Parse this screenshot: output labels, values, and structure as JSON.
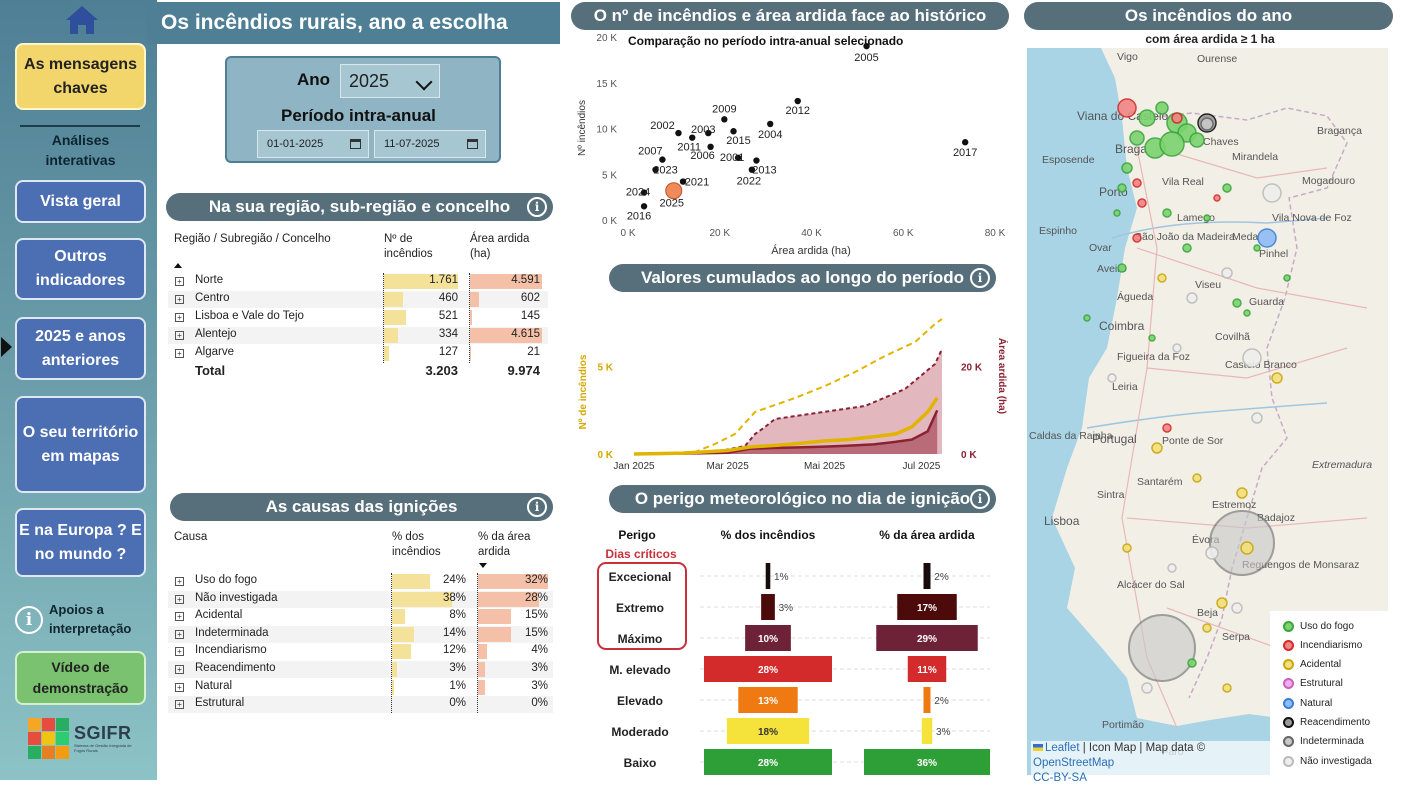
{
  "title": "Os incêndios rurais, ano a escolha",
  "sidebar": {
    "key_messages": "As mensagens chaves",
    "interactive_label": "Análises interativas",
    "items": [
      "Vista geral",
      "Outros indicadores",
      "2025 e anos anteriores",
      "O seu território em mapas",
      "E na Europa ? E no mundo ?"
    ],
    "help": "Apoios a interpretação",
    "video": "Vídeo de demonstração",
    "logo_name": "SGIFR",
    "logo_sub": "Sistema de Gestão Integrada de Fogos Rurais"
  },
  "year_panel": {
    "year_label": "Ano",
    "year_value": "2025",
    "period_label": "Período intra-anual",
    "date_start": "01-01-2025",
    "date_end": "11-07-2025"
  },
  "region_table": {
    "header": "Na sua região, sub-região e concelho",
    "col_region": "Região / Subregião / Concelho",
    "col_count": "Nº de incêndios",
    "col_area": "Área ardida (ha)",
    "rows": [
      {
        "name": "Norte",
        "count": "1.761",
        "area": "4.591",
        "count_v": 1761,
        "area_v": 4591
      },
      {
        "name": "Centro",
        "count": "460",
        "area": "602",
        "count_v": 460,
        "area_v": 602
      },
      {
        "name": "Lisboa e Vale do Tejo",
        "count": "521",
        "area": "145",
        "count_v": 521,
        "area_v": 145
      },
      {
        "name": "Alentejo",
        "count": "334",
        "area": "4.615",
        "count_v": 334,
        "area_v": 4615
      },
      {
        "name": "Algarve",
        "count": "127",
        "area": "21",
        "count_v": 127,
        "area_v": 21
      }
    ],
    "total_label": "Total",
    "total_count": "3.203",
    "total_area": "9.974"
  },
  "causes_table": {
    "header": "As causas das ignições",
    "col_cause": "Causa",
    "col_pct_fires": "% dos incêndios",
    "col_pct_area": "% da área ardida",
    "rows": [
      {
        "name": "Uso do fogo",
        "pf": "24%",
        "pa": "32%",
        "pf_v": 24,
        "pa_v": 32
      },
      {
        "name": "Não investigada",
        "pf": "38%",
        "pa": "28%",
        "pf_v": 38,
        "pa_v": 28
      },
      {
        "name": "Acidental",
        "pf": "8%",
        "pa": "15%",
        "pf_v": 8,
        "pa_v": 15
      },
      {
        "name": "Indeterminada",
        "pf": "14%",
        "pa": "15%",
        "pf_v": 14,
        "pa_v": 15
      },
      {
        "name": "Incendiarismo",
        "pf": "12%",
        "pa": "4%",
        "pf_v": 12,
        "pa_v": 4
      },
      {
        "name": "Reacendimento",
        "pf": "3%",
        "pa": "3%",
        "pf_v": 3,
        "pa_v": 3
      },
      {
        "name": "Natural",
        "pf": "1%",
        "pa": "3%",
        "pf_v": 1,
        "pa_v": 3
      },
      {
        "name": "Estrutural",
        "pf": "0%",
        "pa": "0%",
        "pf_v": 0,
        "pa_v": 0
      }
    ]
  },
  "scatter": {
    "header": "O nº de incêndios e área ardida face ao histórico",
    "subtitle": "Comparação no período intra-anual selecionado",
    "xlabel": "Área ardida (ha)",
    "ylabel": "Nº incêndios",
    "xticks": [
      "0 K",
      "20 K",
      "40 K",
      "60 K",
      "80 K"
    ],
    "yticks": [
      "0 K",
      "5 K",
      "10 K",
      "15 K",
      "20 K"
    ]
  },
  "cumulative": {
    "header": "Valores cumulados ao longo do período",
    "ylabel_left": "Nº de incêndios",
    "ylabel_right": "Área ardida (ha)",
    "xticks": [
      "Jan 2025",
      "Mar 2025",
      "Mai 2025",
      "Jul 2025"
    ],
    "yticks_left": [
      "0 K",
      "5 K"
    ],
    "yticks_right": [
      "0 K",
      "20 K"
    ]
  },
  "danger": {
    "header": "O perigo meteorológico no dia de ignição",
    "col_level": "Perigo",
    "col_fires": "% dos incêndios",
    "col_area": "% da área ardida",
    "critical_label": "Dias críticos",
    "levels": [
      {
        "name": "Excecional",
        "fires": 1,
        "area": 2,
        "fires_label": "1%",
        "area_label": "2%",
        "color": "#1a0a0a"
      },
      {
        "name": "Extremo",
        "fires": 3,
        "area": 17,
        "fires_label": "3%",
        "area_label": "17%",
        "color": "#4d0a0a"
      },
      {
        "name": "Máximo",
        "fires": 10,
        "area": 29,
        "fires_label": "10%",
        "area_label": "29%",
        "color": "#6e2238"
      },
      {
        "name": "M. elevado",
        "fires": 28,
        "area": 11,
        "fires_label": "28%",
        "area_label": "11%",
        "color": "#d32b2b"
      },
      {
        "name": "Elevado",
        "fires": 13,
        "area": 2,
        "fires_label": "13%",
        "area_label": "2%",
        "color": "#ef7a12"
      },
      {
        "name": "Moderado",
        "fires": 18,
        "area": 3,
        "fires_label": "18%",
        "area_label": "3%",
        "color": "#f5e23a"
      },
      {
        "name": "Baixo",
        "fires": 28,
        "area": 36,
        "fires_label": "28%",
        "area_label": "36%",
        "color": "#2e9e36"
      }
    ]
  },
  "map": {
    "header": "Os incêndios do ano",
    "subtitle": "com área ardida ≥ 1 ha",
    "place_labels": [
      "Vigo",
      "Ourense",
      "Viana do Castelo",
      "Braga",
      "Chaves",
      "Bragança",
      "Esposende",
      "Mirandela",
      "Vila Real",
      "Mogadouro",
      "Porto",
      "Lamego",
      "Vila Nova de Foz",
      "Espinho",
      "São João da Madeira",
      "Meda",
      "Ovar",
      "Pinhel",
      "Aveiro",
      "Viseu",
      "Águeda",
      "Guarda",
      "Coimbra",
      "Covilhã",
      "Figueira da Foz",
      "Castelo Branco",
      "Leiria",
      "Portugal",
      "Caldas da Rainha",
      "Ponte de Sor",
      "Santarém",
      "Extremadura",
      "Sintra",
      "Estremoz",
      "Lisboa",
      "Évora",
      "Badajoz",
      "Reguengos de Monsaraz",
      "Alcácer do Sal",
      "Beja",
      "Serpa",
      "Portimão",
      "Faro"
    ],
    "legend": [
      {
        "label": "Uso do fogo",
        "fill": "#7cd36f",
        "stroke": "#3aa63a"
      },
      {
        "label": "Incendiarismo",
        "fill": "#f08585",
        "stroke": "#d32b2b"
      },
      {
        "label": "Acidental",
        "fill": "#f3df7a",
        "stroke": "#c9a70f"
      },
      {
        "label": "Estrutural",
        "fill": "#f2aee8",
        "stroke": "#c662c0"
      },
      {
        "label": "Natural",
        "fill": "#8fbcf5",
        "stroke": "#3a7fd8"
      },
      {
        "label": "Reacendimento",
        "fill": "#9a9a9a",
        "stroke": "#111111"
      },
      {
        "label": "Indeterminada",
        "fill": "#c8c8c8",
        "stroke": "#666666"
      },
      {
        "label": "Não investigada",
        "fill": "#eeeeee",
        "stroke": "#bbbbbb"
      }
    ],
    "attribution_leaflet": "Leaflet",
    "attribution_rest": "| Icon Map | Map data ©",
    "attribution_osm": "OpenStreetMap",
    "attribution_license": "CC-BY-SA"
  },
  "chart_data": [
    {
      "type": "scatter",
      "title": "Comparação no período intra-anual selecionado",
      "xlabel": "Área ardida (ha)",
      "ylabel": "Nº incêndios",
      "xlim": [
        0,
        80000
      ],
      "ylim": [
        0,
        20000
      ],
      "points": [
        {
          "label": "2005",
          "x": 52000,
          "y": 19000
        },
        {
          "label": "2017",
          "x": 73500,
          "y": 8500
        },
        {
          "label": "2012",
          "x": 37000,
          "y": 13000
        },
        {
          "label": "2004",
          "x": 31000,
          "y": 10500
        },
        {
          "label": "2009",
          "x": 21000,
          "y": 11000
        },
        {
          "label": "2002",
          "x": 11000,
          "y": 9500
        },
        {
          "label": "2003",
          "x": 17500,
          "y": 9500
        },
        {
          "label": "2015",
          "x": 23000,
          "y": 9700
        },
        {
          "label": "2011",
          "x": 14000,
          "y": 9000
        },
        {
          "label": "2006",
          "x": 18000,
          "y": 8000
        },
        {
          "label": "2013",
          "x": 28000,
          "y": 6500
        },
        {
          "label": "2001",
          "x": 24000,
          "y": 6800
        },
        {
          "label": "2022",
          "x": 27000,
          "y": 5500
        },
        {
          "label": "2007",
          "x": 7500,
          "y": 6600
        },
        {
          "label": "2023",
          "x": 6000,
          "y": 5500
        },
        {
          "label": "2021",
          "x": 12000,
          "y": 4200
        },
        {
          "label": "2024",
          "x": 3500,
          "y": 3000
        },
        {
          "label": "2016",
          "x": 3500,
          "y": 1500
        },
        {
          "label": "2025",
          "x": 9974,
          "y": 3203,
          "highlight": true
        }
      ]
    },
    {
      "type": "area",
      "title": "Valores cumulados ao longo do período",
      "ylabel_left": "Nº de incêndios",
      "ylabel_right": "Área ardida (ha)",
      "x": [
        "2025-01-01",
        "2025-02-01",
        "2025-03-01",
        "2025-03-15",
        "2025-04-01",
        "2025-04-15",
        "2025-05-01",
        "2025-05-15",
        "2025-06-01",
        "2025-06-15",
        "2025-06-25",
        "2025-07-05",
        "2025-07-11"
      ],
      "series": [
        {
          "name": "Nº de incêndios 2025",
          "values": [
            0,
            50,
            200,
            400,
            500,
            600,
            750,
            820,
            980,
            1150,
            1550,
            2400,
            3203
          ]
        },
        {
          "name": "Área ardida 2025 (ha)",
          "values": [
            0,
            100,
            300,
            1200,
            1400,
            1500,
            1700,
            1900,
            2200,
            2800,
            3300,
            5200,
            9974
          ]
        }
      ]
    },
    {
      "type": "bar",
      "title": "O perigo meteorológico no dia de ignição",
      "categories": [
        "Excecional",
        "Extremo",
        "Máximo",
        "M. elevado",
        "Elevado",
        "Moderado",
        "Baixo"
      ],
      "series": [
        {
          "name": "% dos incêndios",
          "values": [
            1,
            3,
            10,
            28,
            13,
            18,
            28
          ]
        },
        {
          "name": "% da área ardida",
          "values": [
            2,
            17,
            29,
            11,
            2,
            3,
            36
          ]
        }
      ]
    }
  ]
}
